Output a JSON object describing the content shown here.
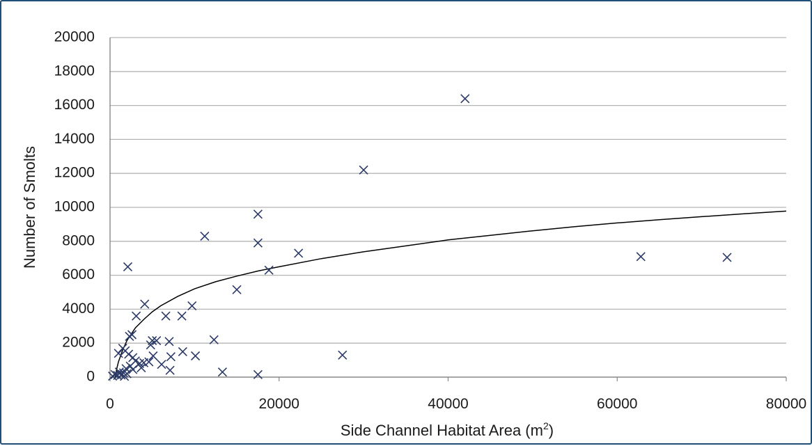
{
  "chart_data": {
    "type": "scatter",
    "xlabel": "Side Channel Habitat Area (m",
    "xlabel_sup": "2",
    "xlabel_close": ")",
    "ylabel": "Number of Smolts",
    "xlim": [
      0,
      80000
    ],
    "ylim": [
      0,
      20000
    ],
    "xticks": [
      "0",
      "20000",
      "40000",
      "60000",
      "80000"
    ],
    "yticks": [
      "0",
      "2000",
      "4000",
      "6000",
      "8000",
      "10000",
      "12000",
      "14000",
      "16000",
      "18000",
      "20000"
    ],
    "grid": true,
    "marker": "x",
    "colors": {
      "marker": "#2b3a67",
      "grid": "#b5b5b5",
      "frame": "#1f4e79",
      "curve": "#000000"
    },
    "points": [
      {
        "x": 42000,
        "y": 16400
      },
      {
        "x": 30000,
        "y": 12200
      },
      {
        "x": 17500,
        "y": 9600
      },
      {
        "x": 11200,
        "y": 8300
      },
      {
        "x": 17500,
        "y": 7900
      },
      {
        "x": 22300,
        "y": 7300
      },
      {
        "x": 62800,
        "y": 7100
      },
      {
        "x": 73000,
        "y": 7050
      },
      {
        "x": 2100,
        "y": 6500
      },
      {
        "x": 18800,
        "y": 6300
      },
      {
        "x": 15000,
        "y": 5150
      },
      {
        "x": 4100,
        "y": 4300
      },
      {
        "x": 9700,
        "y": 4200
      },
      {
        "x": 3100,
        "y": 3600
      },
      {
        "x": 6600,
        "y": 3600
      },
      {
        "x": 8500,
        "y": 3600
      },
      {
        "x": 2600,
        "y": 2500
      },
      {
        "x": 2300,
        "y": 2400
      },
      {
        "x": 12300,
        "y": 2200
      },
      {
        "x": 5000,
        "y": 2150
      },
      {
        "x": 5500,
        "y": 2150
      },
      {
        "x": 7000,
        "y": 2100
      },
      {
        "x": 4800,
        "y": 1900
      },
      {
        "x": 1500,
        "y": 1700
      },
      {
        "x": 1800,
        "y": 1550
      },
      {
        "x": 8600,
        "y": 1500
      },
      {
        "x": 1000,
        "y": 1400
      },
      {
        "x": 2200,
        "y": 1350
      },
      {
        "x": 27500,
        "y": 1300
      },
      {
        "x": 10100,
        "y": 1250
      },
      {
        "x": 5100,
        "y": 1250
      },
      {
        "x": 7200,
        "y": 1200
      },
      {
        "x": 2700,
        "y": 1150
      },
      {
        "x": 3000,
        "y": 950
      },
      {
        "x": 4000,
        "y": 850
      },
      {
        "x": 4600,
        "y": 900
      },
      {
        "x": 3500,
        "y": 800
      },
      {
        "x": 6100,
        "y": 750
      },
      {
        "x": 2400,
        "y": 650
      },
      {
        "x": 3700,
        "y": 550
      },
      {
        "x": 1900,
        "y": 500
      },
      {
        "x": 2700,
        "y": 450
      },
      {
        "x": 7100,
        "y": 400
      },
      {
        "x": 13300,
        "y": 300
      },
      {
        "x": 1100,
        "y": 300
      },
      {
        "x": 1600,
        "y": 250
      },
      {
        "x": 2000,
        "y": 200
      },
      {
        "x": 600,
        "y": 150
      },
      {
        "x": 900,
        "y": 100
      },
      {
        "x": 1300,
        "y": 120
      },
      {
        "x": 17500,
        "y": 150
      },
      {
        "x": 300,
        "y": 60
      },
      {
        "x": 1700,
        "y": 50
      }
    ],
    "trendline": {
      "type": "logarithmic",
      "points": [
        {
          "x": 600,
          "y": 0
        },
        {
          "x": 800,
          "y": 500
        },
        {
          "x": 1000,
          "y": 900
        },
        {
          "x": 1500,
          "y": 1600
        },
        {
          "x": 2000,
          "y": 2150
        },
        {
          "x": 3000,
          "y": 2900
        },
        {
          "x": 4000,
          "y": 3400
        },
        {
          "x": 5000,
          "y": 3850
        },
        {
          "x": 6000,
          "y": 4200
        },
        {
          "x": 8000,
          "y": 4750
        },
        {
          "x": 10000,
          "y": 5200
        },
        {
          "x": 12500,
          "y": 5620
        },
        {
          "x": 15000,
          "y": 5950
        },
        {
          "x": 17500,
          "y": 6250
        },
        {
          "x": 20000,
          "y": 6500
        },
        {
          "x": 25000,
          "y": 6980
        },
        {
          "x": 30000,
          "y": 7380
        },
        {
          "x": 35000,
          "y": 7730
        },
        {
          "x": 40000,
          "y": 8080
        },
        {
          "x": 45000,
          "y": 8350
        },
        {
          "x": 50000,
          "y": 8620
        },
        {
          "x": 55000,
          "y": 8860
        },
        {
          "x": 60000,
          "y": 9080
        },
        {
          "x": 65000,
          "y": 9270
        },
        {
          "x": 70000,
          "y": 9450
        },
        {
          "x": 75000,
          "y": 9620
        },
        {
          "x": 80000,
          "y": 9780
        }
      ]
    }
  }
}
